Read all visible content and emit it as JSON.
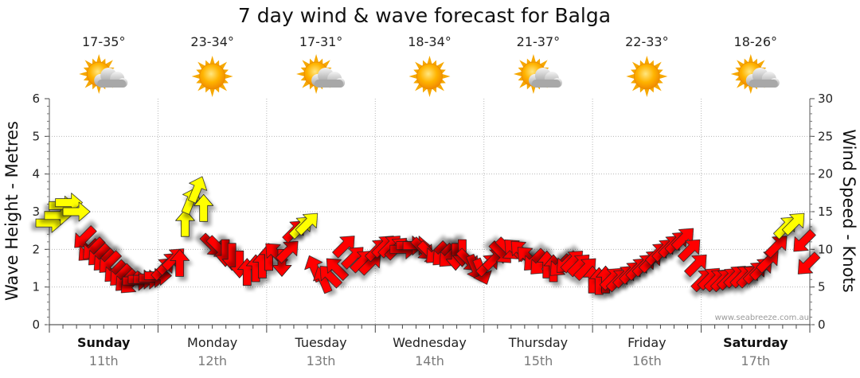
{
  "chart_data": {
    "type": "line",
    "title": "7 day wind & wave forecast for Balga",
    "ylabel_left": "Wave Height - Metres",
    "ylabel_right": "Wind Speed - Knots",
    "ylim_left": [
      0,
      6
    ],
    "ylim_right": [
      0,
      30
    ],
    "yticks_left": [
      "0",
      "1",
      "2",
      "3",
      "4",
      "5",
      "6"
    ],
    "yticks_right": [
      "0",
      "5",
      "10",
      "15",
      "20",
      "25",
      "30"
    ],
    "grid": true,
    "credit": "www.seabreeze.com.au",
    "days": [
      {
        "name": "Sunday",
        "date": "11th",
        "temp": "17-35°",
        "icon": "partly-cloudy-icon",
        "bold": true
      },
      {
        "name": "Monday",
        "date": "12th",
        "temp": "23-34°",
        "icon": "sunny-icon",
        "bold": false
      },
      {
        "name": "Tuesday",
        "date": "13th",
        "temp": "17-31°",
        "icon": "partly-cloudy-icon",
        "bold": false
      },
      {
        "name": "Wednesday",
        "date": "14th",
        "temp": "18-34°",
        "icon": "sunny-icon",
        "bold": false
      },
      {
        "name": "Thursday",
        "date": "15th",
        "temp": "21-37°",
        "icon": "partly-cloudy-icon",
        "bold": false
      },
      {
        "name": "Friday",
        "date": "16th",
        "temp": "22-33°",
        "icon": "sunny-icon",
        "bold": false
      },
      {
        "name": "Saturday",
        "date": "17th",
        "temp": "18-26°",
        "icon": "partly-cloudy-icon",
        "bold": true
      }
    ],
    "series": [
      {
        "kind": "wind-arrows",
        "color_light": "#ffff00",
        "color_strong": "#ff0000",
        "light_threshold_knots": 13,
        "x_days": [
          0.0,
          0.08,
          0.12,
          0.18,
          0.25,
          0.32,
          0.36,
          0.4,
          0.45,
          0.5,
          0.55,
          0.6,
          0.65,
          0.7,
          0.75,
          0.8,
          0.85,
          0.9,
          0.95,
          1.0,
          1.05,
          1.1,
          1.15,
          1.2,
          1.25,
          1.3,
          1.36,
          1.42,
          1.5,
          1.56,
          1.62,
          1.68,
          1.75,
          1.82,
          1.9,
          1.96,
          2.02,
          2.08,
          2.14,
          2.2,
          2.26,
          2.32,
          2.38,
          2.44,
          2.52,
          2.58,
          2.64,
          2.72,
          2.8,
          2.88,
          2.96,
          3.02,
          3.08,
          3.14,
          3.2,
          3.26,
          3.32,
          3.38,
          3.44,
          3.5,
          3.56,
          3.62,
          3.68,
          3.74,
          3.8,
          3.86,
          3.92,
          3.98,
          4.04,
          4.1,
          4.16,
          4.22,
          4.28,
          4.34,
          4.4,
          4.46,
          4.52,
          4.58,
          4.64,
          4.7,
          4.76,
          4.82,
          4.88,
          4.94,
          5.0,
          5.06,
          5.12,
          5.18,
          5.24,
          5.3,
          5.36,
          5.42,
          5.48,
          5.54,
          5.6,
          5.66,
          5.72,
          5.78,
          5.84,
          5.9,
          5.96,
          6.02,
          6.08,
          6.14,
          6.2,
          6.26,
          6.32,
          6.38,
          6.44,
          6.5,
          6.56,
          6.62,
          6.7,
          6.78,
          6.86,
          6.94,
          6.98
        ],
        "knots": [
          13.5,
          14.5,
          15.8,
          16.2,
          15.0,
          11.5,
          9.8,
          10.0,
          9.2,
          8.5,
          8.2,
          7.0,
          6.5,
          5.8,
          5.5,
          5.8,
          6.0,
          6.0,
          6.2,
          6.5,
          7.5,
          8.2,
          8.8,
          8.2,
          13.5,
          16.5,
          18.0,
          15.5,
          10.5,
          10.2,
          9.5,
          9.0,
          8.0,
          7.0,
          7.5,
          8.0,
          9.0,
          9.5,
          8.2,
          9.8,
          12.5,
          13.0,
          13.5,
          7.5,
          6.0,
          6.5,
          7.5,
          10.5,
          9.0,
          8.5,
          8.2,
          10.0,
          10.5,
          10.5,
          10.2,
          10.0,
          10.5,
          10.5,
          10.0,
          9.5,
          9.5,
          9.2,
          9.0,
          9.0,
          9.5,
          8.5,
          7.5,
          7.0,
          8.0,
          8.8,
          9.5,
          10.0,
          10.0,
          9.8,
          9.0,
          8.5,
          8.0,
          8.0,
          7.5,
          7.8,
          8.2,
          8.5,
          8.0,
          7.5,
          6.0,
          5.8,
          6.0,
          6.2,
          6.0,
          6.5,
          7.0,
          7.5,
          8.0,
          8.5,
          9.5,
          10.0,
          10.5,
          11.0,
          11.5,
          10.0,
          8.0,
          6.0,
          6.2,
          6.0,
          6.0,
          6.2,
          6.5,
          6.5,
          6.5,
          7.0,
          7.5,
          8.5,
          10.5,
          13.0,
          13.5,
          11.0,
          8.0
        ],
        "dir": [
          "W",
          "W",
          "W",
          "W",
          "W",
          "NE",
          "NE",
          "NE",
          "NE",
          "NE",
          "NE",
          "NE",
          "NE",
          "NE",
          "NE",
          "W",
          "W",
          "W",
          "W",
          "W",
          "SW",
          "SW",
          "SW",
          "S",
          "S",
          "SSW",
          "SSW",
          "S",
          "NW",
          "NW",
          "N",
          "N",
          "N",
          "S",
          "S",
          "S",
          "S",
          "SE",
          "N",
          "SW",
          "SW",
          "SW",
          "SW",
          "SSE",
          "SSE",
          "SE",
          "SE",
          "SW",
          "SW",
          "SW",
          "SW",
          "SW",
          "SW",
          "SW",
          "SW",
          "W",
          "W",
          "W",
          "NW",
          "NW",
          "NE",
          "NE",
          "NE",
          "N",
          "N",
          "NW",
          "NNW",
          "NNW",
          "SW",
          "SW",
          "NW",
          "NW",
          "SE",
          "SE",
          "SE",
          "NE",
          "NE",
          "S",
          "S",
          "NE",
          "NE",
          "SW",
          "SW",
          "SW",
          "S",
          "S",
          "S",
          "SW",
          "SW",
          "SW",
          "SW",
          "SW",
          "SW",
          "SW",
          "SW",
          "SW",
          "SW",
          "SW",
          "SW",
          "SW",
          "SW",
          "SW",
          "SW",
          "SW",
          "SW",
          "SW",
          "SW",
          "SW",
          "SW",
          "SW",
          "SW",
          "SW",
          "SW",
          "SW",
          "SW",
          "NE",
          "NE"
        ]
      }
    ]
  }
}
